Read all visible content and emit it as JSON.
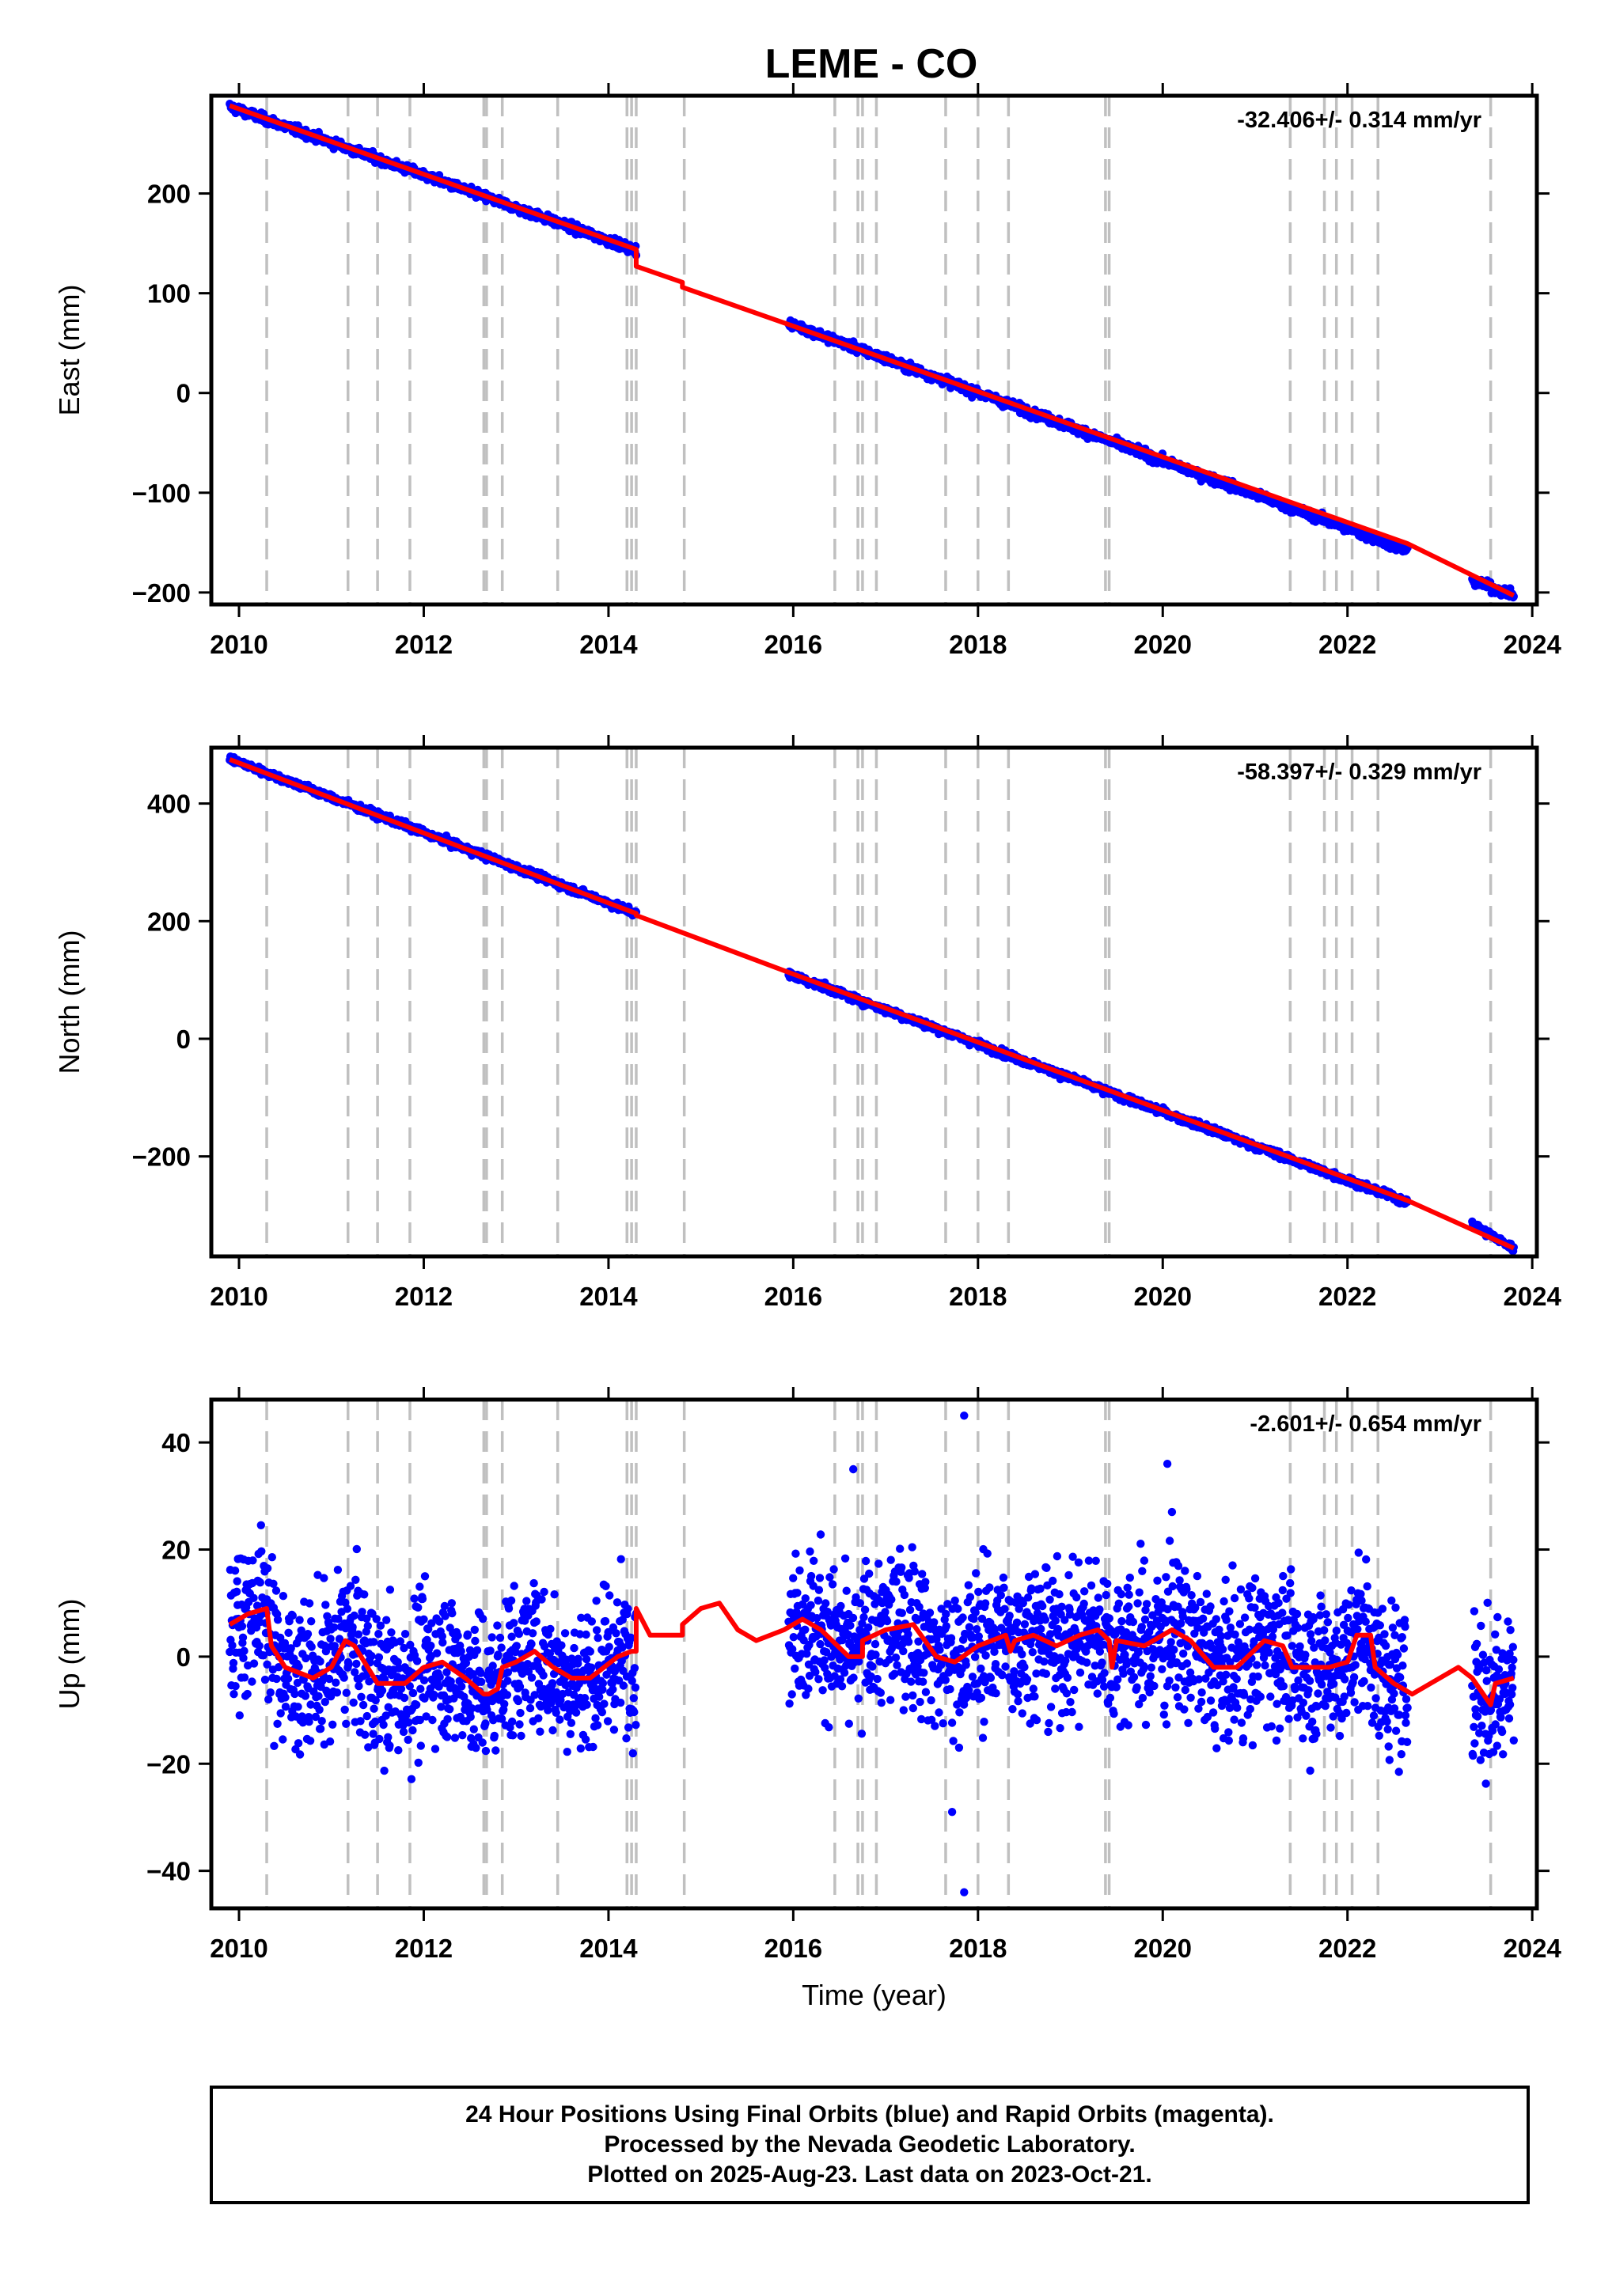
{
  "chart_data": [
    {
      "type": "scatter",
      "title": "LEME - CO",
      "ylabel": "East (mm)",
      "xlabel": "",
      "xlim": [
        2009.7,
        2024.05
      ],
      "ylim": [
        -212,
        298
      ],
      "x_ticks": [
        "2010",
        "2012",
        "2014",
        "2016",
        "2018",
        "2020",
        "2022",
        "2024"
      ],
      "y_ticks": [
        "200",
        "100",
        "0",
        "−100",
        "−200"
      ],
      "rate_label": "-32.406+/- 0.314 mm/yr",
      "series": [
        {
          "name": "Final Orbits",
          "color": "#0000ff",
          "kind": "points",
          "segments": [
            [
              2009.9,
              2014.3,
              287,
              143
            ],
            [
              2015.95,
              2022.65,
              70,
              -158
            ],
            [
              2023.35,
              2023.8,
              -188,
              -203
            ]
          ],
          "noise": 2.2,
          "count": 1800
        },
        {
          "name": "model",
          "color": "#ff0000",
          "kind": "line",
          "points": [
            [
              2009.9,
              288
            ],
            [
              2014.3,
              144
            ],
            [
              2014.3,
              127
            ],
            [
              2014.8,
              111
            ],
            [
              2014.8,
              106
            ],
            [
              2016,
              67
            ],
            [
              2022.65,
              -151
            ],
            [
              2023.8,
              -203
            ]
          ]
        }
      ]
    },
    {
      "type": "scatter",
      "ylabel": "North (mm)",
      "xlabel": "",
      "xlim": [
        2009.7,
        2024.05
      ],
      "ylim": [
        -370,
        495
      ],
      "x_ticks": [
        "2010",
        "2012",
        "2014",
        "2016",
        "2018",
        "2020",
        "2022",
        "2024"
      ],
      "y_ticks": [
        "400",
        "200",
        "0",
        "−200"
      ],
      "rate_label": "-58.397+/- 0.329 mm/yr",
      "series": [
        {
          "name": "Final Orbits",
          "color": "#0000ff",
          "kind": "points",
          "segments": [
            [
              2009.9,
              2014.3,
              476,
              213
            ],
            [
              2015.95,
              2022.65,
              110,
              -278
            ],
            [
              2023.35,
              2023.8,
              -315,
              -357
            ]
          ],
          "noise": 3.0,
          "count": 1800
        },
        {
          "name": "model",
          "color": "#ff0000",
          "kind": "line",
          "points": [
            [
              2009.9,
              475
            ],
            [
              2014.3,
              213
            ],
            [
              2014.3,
              210
            ],
            [
              2016,
              110
            ],
            [
              2022.65,
              -275
            ],
            [
              2023.8,
              -356
            ]
          ]
        }
      ]
    },
    {
      "type": "scatter",
      "ylabel": "Up (mm)",
      "xlabel": "Time (year)",
      "xlim": [
        2009.7,
        2024.05
      ],
      "ylim": [
        -47,
        48
      ],
      "x_ticks": [
        "2010",
        "2012",
        "2014",
        "2016",
        "2018",
        "2020",
        "2022",
        "2024"
      ],
      "y_ticks": [
        "40",
        "20",
        "0",
        "−20",
        "−40"
      ],
      "rate_label": "-2.601+/- 0.654 mm/yr",
      "series": [
        {
          "name": "Final Orbits",
          "color": "#0000ff",
          "kind": "points",
          "segments": [
            [
              2009.9,
              2014.3,
              0,
              0
            ],
            [
              2015.95,
              2022.65,
              0,
              0
            ],
            [
              2023.35,
              2023.8,
              0,
              0
            ]
          ],
          "noise": 7.0,
          "count": 2600,
          "outliers": [
            [
              2016.65,
              35
            ],
            [
              2017.85,
              45
            ],
            [
              2020.05,
              36
            ],
            [
              2017.72,
              -29
            ],
            [
              2017.85,
              -44
            ],
            [
              2020.1,
              27
            ]
          ]
        },
        {
          "name": "model",
          "color": "#ff0000",
          "kind": "line",
          "points": [
            [
              2009.9,
              6
            ],
            [
              2010.1,
              8
            ],
            [
              2010.3,
              9
            ],
            [
              2010.35,
              2
            ],
            [
              2010.5,
              -2
            ],
            [
              2010.8,
              -4
            ],
            [
              2011,
              -2
            ],
            [
              2011.15,
              3
            ],
            [
              2011.25,
              2
            ],
            [
              2011.5,
              -5
            ],
            [
              2011.8,
              -5
            ],
            [
              2012,
              -2
            ],
            [
              2012.2,
              -1
            ],
            [
              2012.45,
              -4
            ],
            [
              2012.65,
              -7
            ],
            [
              2012.7,
              -7
            ],
            [
              2012.8,
              -6
            ],
            [
              2012.85,
              -2
            ],
            [
              2013,
              -1
            ],
            [
              2013.2,
              1
            ],
            [
              2013.4,
              -2
            ],
            [
              2013.6,
              -4
            ],
            [
              2013.8,
              -4
            ],
            [
              2014.1,
              0
            ],
            [
              2014.25,
              1
            ],
            [
              2014.3,
              1
            ],
            [
              2014.3,
              9
            ],
            [
              2014.45,
              4
            ],
            [
              2014.8,
              4
            ],
            [
              2014.8,
              6
            ],
            [
              2015,
              9
            ],
            [
              2015.2,
              10
            ],
            [
              2015.4,
              5
            ],
            [
              2015.6,
              3
            ],
            [
              2015.9,
              5
            ],
            [
              2016.1,
              7
            ],
            [
              2016.3,
              5
            ],
            [
              2016.6,
              0
            ],
            [
              2016.75,
              0
            ],
            [
              2016.75,
              3
            ],
            [
              2017,
              5
            ],
            [
              2017.3,
              6
            ],
            [
              2017.55,
              0
            ],
            [
              2017.75,
              -1
            ],
            [
              2018,
              2
            ],
            [
              2018.3,
              4
            ],
            [
              2018.35,
              1
            ],
            [
              2018.4,
              3
            ],
            [
              2018.6,
              4
            ],
            [
              2018.85,
              2
            ],
            [
              2019.1,
              4
            ],
            [
              2019.3,
              5
            ],
            [
              2019.42,
              3
            ],
            [
              2019.45,
              -2
            ],
            [
              2019.5,
              3
            ],
            [
              2019.8,
              2
            ],
            [
              2020.1,
              5
            ],
            [
              2020.3,
              3
            ],
            [
              2020.55,
              -2
            ],
            [
              2020.8,
              -2
            ],
            [
              2021.1,
              3
            ],
            [
              2021.3,
              2
            ],
            [
              2021.4,
              -2
            ],
            [
              2021.5,
              -2
            ],
            [
              2021.8,
              -2
            ],
            [
              2022,
              -1
            ],
            [
              2022.1,
              4
            ],
            [
              2022.25,
              4
            ],
            [
              2022.3,
              -2
            ],
            [
              2022.5,
              -5
            ],
            [
              2022.7,
              -7
            ],
            [
              2022.9,
              -5
            ],
            [
              2023.2,
              -2
            ],
            [
              2023.35,
              -4
            ],
            [
              2023.55,
              -9
            ],
            [
              2023.6,
              -5
            ],
            [
              2023.8,
              -4
            ]
          ]
        }
      ]
    }
  ],
  "colors": {
    "points": "#0000ff",
    "model": "#ff0000",
    "events": "#c0c0c0",
    "frame": "#000000"
  },
  "event_lines": [
    2010.3,
    2011.18,
    2011.5,
    2011.85,
    2012.65,
    2012.68,
    2012.85,
    2013.45,
    2014.2,
    2014.25,
    2014.3,
    2014.82,
    2016.45,
    2016.7,
    2016.75,
    2016.9,
    2017.65,
    2018.0,
    2018.33,
    2019.38,
    2019.42,
    2021.38,
    2021.75,
    2021.88,
    2022.05,
    2022.33,
    2023.55
  ],
  "footer": {
    "line1": "24 Hour Positions Using Final Orbits (blue) and Rapid Orbits (magenta).",
    "line2": "Processed by the Nevada Geodetic Laboratory.",
    "line3": "Plotted on 2025-Aug-23. Last data on 2023-Oct-21."
  }
}
